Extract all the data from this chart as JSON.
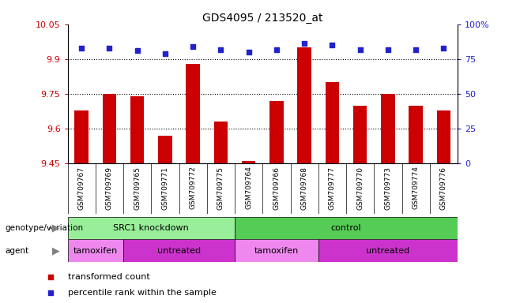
{
  "title": "GDS4095 / 213520_at",
  "samples": [
    "GSM709767",
    "GSM709769",
    "GSM709765",
    "GSM709771",
    "GSM709772",
    "GSM709775",
    "GSM709764",
    "GSM709766",
    "GSM709768",
    "GSM709777",
    "GSM709770",
    "GSM709773",
    "GSM709774",
    "GSM709776"
  ],
  "bar_values": [
    9.68,
    9.75,
    9.74,
    9.57,
    9.88,
    9.63,
    9.46,
    9.72,
    9.95,
    9.8,
    9.7,
    9.75,
    9.7,
    9.68
  ],
  "percentile_values": [
    83,
    83,
    81,
    79,
    84,
    82,
    80,
    82,
    86,
    85,
    82,
    82,
    82,
    83
  ],
  "ylim_left": [
    9.45,
    10.05
  ],
  "ylim_right": [
    0,
    100
  ],
  "yticks_left": [
    9.45,
    9.6,
    9.75,
    9.9,
    10.05
  ],
  "yticks_right": [
    0,
    25,
    50,
    75,
    100
  ],
  "ytick_labels_left": [
    "9.45",
    "9.6",
    "9.75",
    "9.9",
    "10.05"
  ],
  "ytick_labels_right": [
    "0",
    "25",
    "50",
    "75",
    "100%"
  ],
  "bar_color": "#cc0000",
  "dot_color": "#2222cc",
  "bar_bottom": 9.45,
  "bar_width": 0.5,
  "genotype_groups": [
    {
      "label": "SRC1 knockdown",
      "start": 0,
      "end": 6
    },
    {
      "label": "control",
      "start": 6,
      "end": 14
    }
  ],
  "genotype_colors": [
    "#99ee99",
    "#55cc55"
  ],
  "agent_groups": [
    {
      "label": "tamoxifen",
      "start": 0,
      "end": 2
    },
    {
      "label": "untreated",
      "start": 2,
      "end": 6
    },
    {
      "label": "tamoxifen",
      "start": 6,
      "end": 9
    },
    {
      "label": "untreated",
      "start": 9,
      "end": 14
    }
  ],
  "agent_colors_map": {
    "tamoxifen": "#ee88ee",
    "untreated": "#cc33cc"
  },
  "legend_items": [
    {
      "label": "transformed count",
      "color": "#cc0000"
    },
    {
      "label": "percentile rank within the sample",
      "color": "#2222cc"
    }
  ],
  "left_label_color": "#cc0000",
  "right_label_color": "#2222cc",
  "xlabel_area_color": "#cccccc",
  "dot_size": 20
}
